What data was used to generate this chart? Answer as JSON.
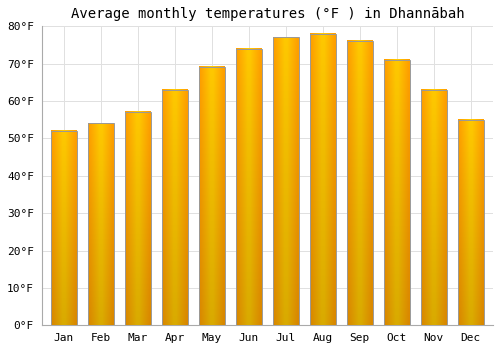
{
  "title": "Average monthly temperatures (°F ) in Dhannābah",
  "months": [
    "Jan",
    "Feb",
    "Mar",
    "Apr",
    "May",
    "Jun",
    "Jul",
    "Aug",
    "Sep",
    "Oct",
    "Nov",
    "Dec"
  ],
  "values": [
    52,
    54,
    57,
    63,
    69,
    74,
    77,
    78,
    76,
    71,
    63,
    55
  ],
  "ylim": [
    0,
    80
  ],
  "yticks": [
    0,
    10,
    20,
    30,
    40,
    50,
    60,
    70,
    80
  ],
  "ytick_labels": [
    "0°F",
    "10°F",
    "20°F",
    "30°F",
    "40°F",
    "50°F",
    "60°F",
    "70°F",
    "80°F"
  ],
  "bar_color_center": "#FFCD00",
  "bar_color_edge": "#F5A000",
  "bar_border_color": "#999999",
  "background_color": "#ffffff",
  "grid_color": "#e0e0e0",
  "title_fontsize": 10,
  "tick_fontsize": 8,
  "bar_width": 0.7
}
